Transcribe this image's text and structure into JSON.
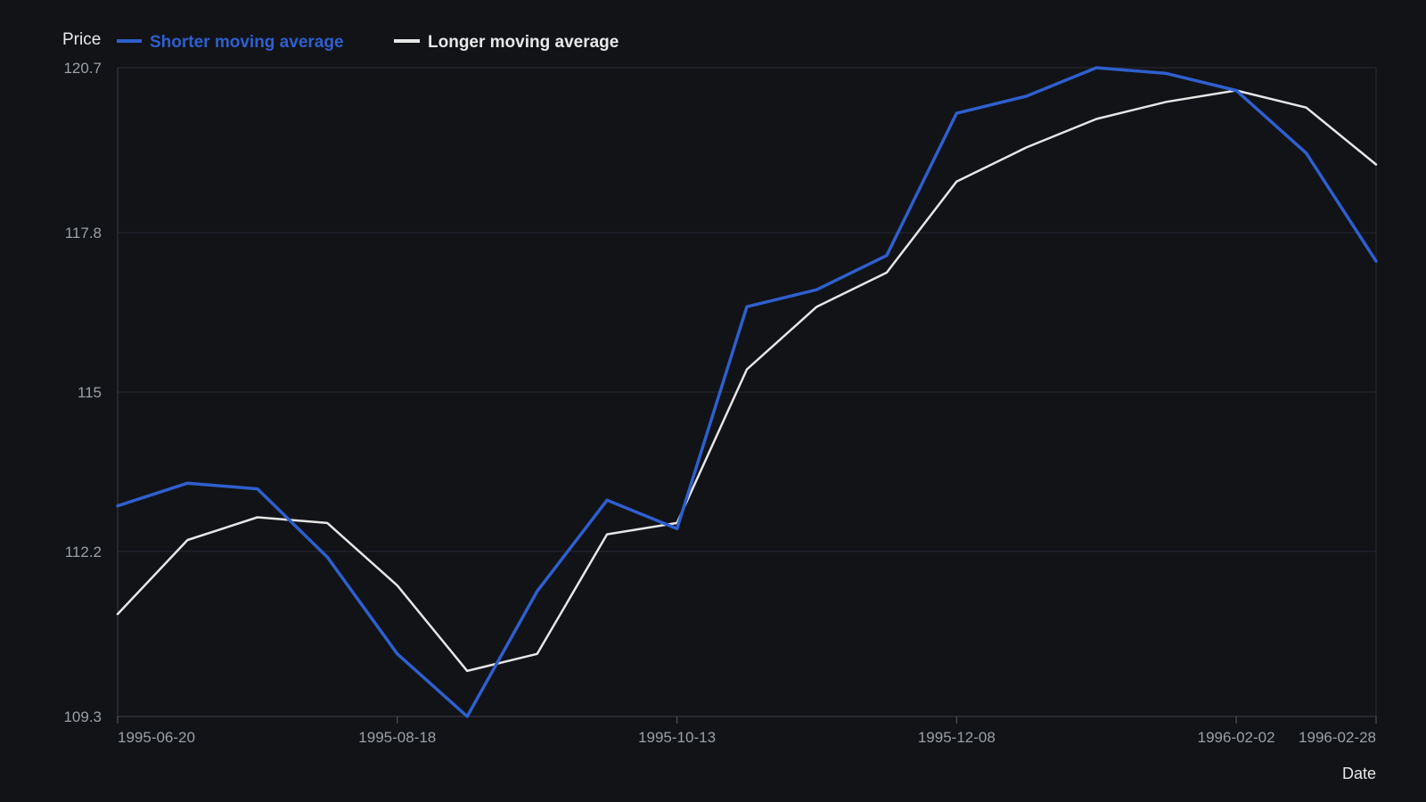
{
  "chart_data": {
    "type": "line",
    "ylabel": "Price",
    "xlabel": "Date",
    "ylim": [
      109.3,
      120.7
    ],
    "yticks": [
      109.3,
      112.2,
      115,
      117.8,
      120.7
    ],
    "ytick_labels": [
      "109.3",
      "112.2",
      "115",
      "117.8",
      "120.7"
    ],
    "xtick_labels": [
      "1995-06-20",
      "1995-08-18",
      "1995-10-13",
      "1995-12-08",
      "1996-02-02",
      "1996-02-28"
    ],
    "xtick_indices": [
      0,
      4,
      8,
      12,
      16,
      18
    ],
    "grid": true,
    "legend": "top-left",
    "series": [
      {
        "name": "Shorter moving average",
        "color": "#2f5fce",
        "values": [
          113.0,
          113.4,
          113.3,
          112.1,
          110.4,
          109.3,
          111.5,
          113.1,
          112.6,
          116.5,
          116.8,
          117.4,
          119.9,
          120.2,
          120.7,
          120.6,
          120.3,
          119.2,
          117.3
        ]
      },
      {
        "name": "Longer moving average",
        "color": "#e6e6e6",
        "values": [
          111.1,
          112.4,
          112.8,
          112.7,
          111.6,
          110.1,
          110.4,
          112.5,
          112.7,
          115.4,
          116.5,
          117.1,
          118.7,
          119.3,
          119.8,
          120.1,
          120.3,
          120.0,
          119.0
        ]
      }
    ]
  }
}
